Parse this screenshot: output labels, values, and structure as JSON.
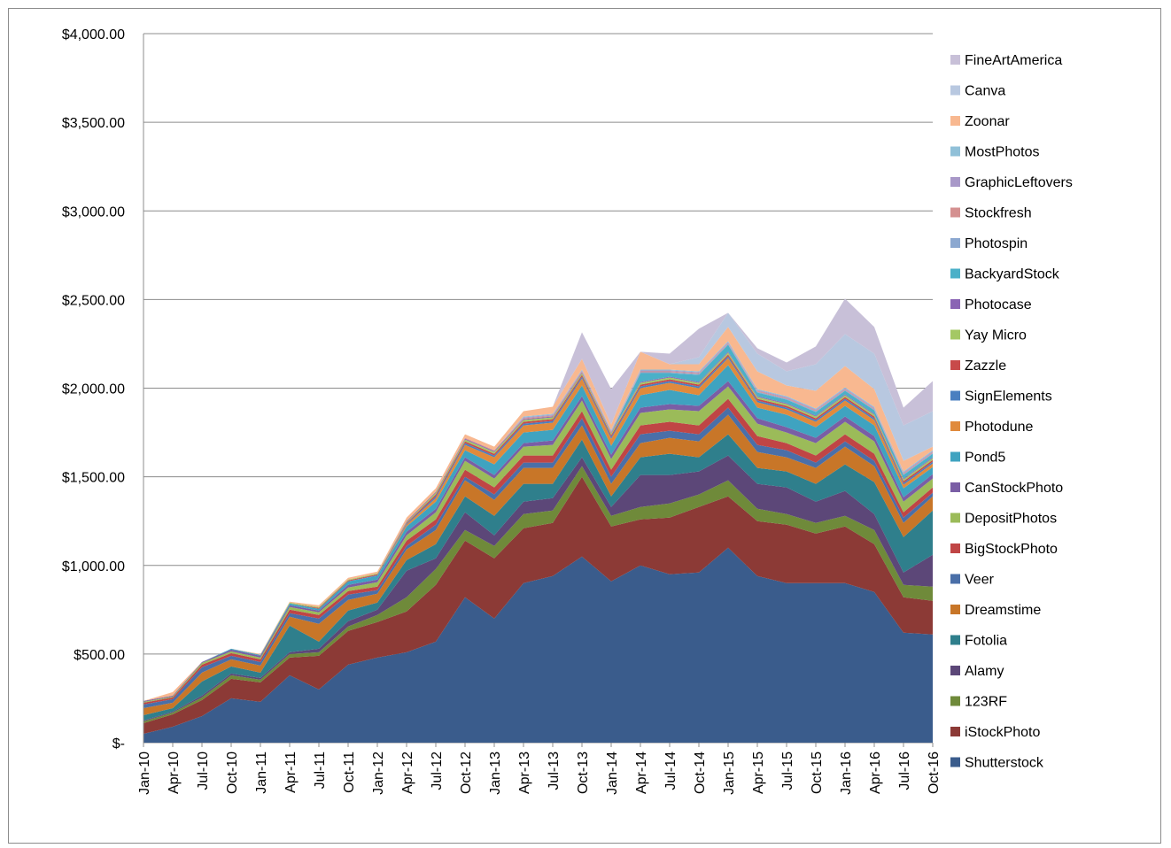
{
  "chart_data": {
    "type": "area",
    "stacked": true,
    "title": "",
    "xlabel": "",
    "ylabel": "",
    "ylim": [
      0,
      4000
    ],
    "y_ticks": [
      0,
      500,
      1000,
      1500,
      2000,
      2500,
      3000,
      3500,
      4000
    ],
    "y_tick_labels": [
      "$-",
      "$500.00",
      "$1,000.00",
      "$1,500.00",
      "$2,000.00",
      "$2,500.00",
      "$3,000.00",
      "$3,500.00",
      "$4,000.00"
    ],
    "x_tick_labels": [
      "Jan-10",
      "Apr-10",
      "Jul-10",
      "Oct-10",
      "Jan-11",
      "Apr-11",
      "Jul-11",
      "Oct-11",
      "Jan-12",
      "Apr-12",
      "Jul-12",
      "Oct-12",
      "Jan-13",
      "Apr-13",
      "Jul-13",
      "Oct-13",
      "Jan-14",
      "Apr-14",
      "Jul-14",
      "Oct-14",
      "Jan-15",
      "Apr-15",
      "Jul-15",
      "Oct-15",
      "Jan-16",
      "Apr-16",
      "Jul-16",
      "Oct-16"
    ],
    "grid": "horizontal",
    "legend_position": "right",
    "legend_order": [
      "FineArtAmerica",
      "Canva",
      "Zoonar",
      "MostPhotos",
      "GraphicLeftovers",
      "Stockfresh",
      "Photospin",
      "BackyardStock",
      "Photocase",
      "Yay Micro",
      "Zazzle",
      "SignElements",
      "Photodune",
      "Pond5",
      "CanStockPhoto",
      "DepositPhotos",
      "BigStockPhoto",
      "Veer",
      "Dreamstime",
      "Fotolia",
      "Alamy",
      "123RF",
      "iStockPhoto",
      "Shutterstock"
    ],
    "x": [
      "Jan-10",
      "Apr-10",
      "Jul-10",
      "Oct-10",
      "Jan-11",
      "Apr-11",
      "Jul-11",
      "Oct-11",
      "Jan-12",
      "Apr-12",
      "Jul-12",
      "Oct-12",
      "Jan-13",
      "Apr-13",
      "Jul-13",
      "Oct-13",
      "Jan-14",
      "Apr-14",
      "Jul-14",
      "Oct-14",
      "Jan-15",
      "Apr-15",
      "Jul-15",
      "Oct-15",
      "Jan-16",
      "Apr-16",
      "Jul-16",
      "Oct-16"
    ],
    "series": [
      {
        "name": "Shutterstock",
        "color": "#3a5c8c",
        "values": [
          50,
          90,
          150,
          250,
          230,
          380,
          300,
          440,
          480,
          510,
          570,
          820,
          700,
          900,
          940,
          1050,
          910,
          1000,
          950,
          960,
          1100,
          940,
          900,
          900,
          900,
          850,
          620,
          610
        ]
      },
      {
        "name": "iStockPhoto",
        "color": "#8c3a36",
        "values": [
          60,
          70,
          90,
          110,
          110,
          100,
          190,
          190,
          200,
          230,
          320,
          320,
          340,
          310,
          300,
          450,
          310,
          260,
          320,
          370,
          290,
          310,
          330,
          280,
          320,
          270,
          200,
          190
        ]
      },
      {
        "name": "123RF",
        "color": "#6f8a3a",
        "values": [
          10,
          10,
          15,
          20,
          15,
          20,
          20,
          25,
          40,
          80,
          90,
          60,
          70,
          80,
          70,
          60,
          60,
          70,
          80,
          70,
          90,
          70,
          60,
          60,
          60,
          80,
          70,
          80
        ]
      },
      {
        "name": "Alamy",
        "color": "#5c4778",
        "values": [
          5,
          5,
          10,
          10,
          10,
          10,
          20,
          30,
          30,
          150,
          60,
          100,
          60,
          70,
          70,
          50,
          50,
          180,
          160,
          130,
          140,
          140,
          150,
          120,
          140,
          90,
          70,
          180
        ]
      },
      {
        "name": "Fotolia",
        "color": "#2f7f8c",
        "values": [
          30,
          20,
          80,
          40,
          30,
          150,
          40,
          60,
          40,
          60,
          80,
          90,
          110,
          100,
          80,
          100,
          60,
          100,
          120,
          80,
          120,
          90,
          90,
          100,
          150,
          180,
          200,
          250
        ]
      },
      {
        "name": "Dreamstime",
        "color": "#c87628",
        "values": [
          40,
          30,
          50,
          40,
          40,
          50,
          100,
          60,
          50,
          60,
          80,
          90,
          90,
          90,
          90,
          80,
          70,
          80,
          90,
          90,
          110,
          90,
          80,
          90,
          100,
          90,
          80,
          80
        ]
      },
      {
        "name": "Veer",
        "color": "#4a6fa8",
        "values": [
          20,
          20,
          30,
          20,
          20,
          20,
          30,
          30,
          20,
          20,
          30,
          20,
          30,
          30,
          30,
          40,
          40,
          50,
          40,
          40,
          40,
          40,
          40,
          30,
          30,
          30,
          30,
          20
        ]
      },
      {
        "name": "BigStockPhoto",
        "color": "#c04545",
        "values": [
          10,
          10,
          15,
          15,
          15,
          20,
          20,
          20,
          20,
          30,
          30,
          40,
          40,
          40,
          40,
          40,
          40,
          50,
          50,
          50,
          50,
          50,
          40,
          40,
          40,
          40,
          30,
          30
        ]
      },
      {
        "name": "DepositPhotos",
        "color": "#9bbb59",
        "values": [
          5,
          5,
          10,
          10,
          10,
          15,
          15,
          20,
          25,
          30,
          40,
          50,
          50,
          50,
          60,
          60,
          60,
          70,
          70,
          80,
          70,
          70,
          60,
          70,
          70,
          70,
          60,
          50
        ]
      },
      {
        "name": "CanStockPhoto",
        "color": "#7a5ea5",
        "values": [
          5,
          5,
          5,
          10,
          10,
          10,
          10,
          15,
          15,
          20,
          20,
          20,
          20,
          20,
          25,
          25,
          25,
          30,
          30,
          30,
          30,
          30,
          30,
          30,
          30,
          30,
          25,
          25
        ]
      },
      {
        "name": "Pond5",
        "color": "#3fa3c0",
        "values": [
          0,
          0,
          0,
          5,
          5,
          10,
          10,
          20,
          20,
          30,
          40,
          40,
          60,
          60,
          60,
          60,
          50,
          70,
          80,
          60,
          90,
          60,
          70,
          60,
          60,
          60,
          50,
          40
        ]
      },
      {
        "name": "Photodune",
        "color": "#e08a3c",
        "values": [
          0,
          0,
          0,
          0,
          0,
          0,
          0,
          0,
          0,
          10,
          20,
          30,
          40,
          40,
          40,
          40,
          40,
          40,
          40,
          40,
          40,
          30,
          30,
          30,
          30,
          30,
          20,
          20
        ]
      },
      {
        "name": "SignElements",
        "color": "#4a7fc0",
        "values": [
          0,
          0,
          0,
          0,
          0,
          0,
          0,
          0,
          5,
          5,
          10,
          10,
          10,
          10,
          10,
          10,
          10,
          10,
          10,
          10,
          10,
          10,
          10,
          10,
          10,
          10,
          10,
          10
        ]
      },
      {
        "name": "Zazzle",
        "color": "#c84a4a",
        "values": [
          0,
          0,
          0,
          0,
          0,
          0,
          5,
          5,
          5,
          5,
          10,
          10,
          10,
          10,
          10,
          10,
          10,
          10,
          10,
          10,
          10,
          10,
          10,
          10,
          10,
          10,
          10,
          10
        ]
      },
      {
        "name": "Yay Micro",
        "color": "#a4c864",
        "values": [
          0,
          0,
          0,
          0,
          0,
          5,
          5,
          5,
          5,
          5,
          10,
          10,
          10,
          10,
          10,
          10,
          10,
          10,
          10,
          10,
          10,
          10,
          10,
          10,
          10,
          10,
          10,
          10
        ]
      },
      {
        "name": "Photocase",
        "color": "#8a64b4",
        "values": [
          0,
          0,
          0,
          0,
          0,
          0,
          0,
          0,
          0,
          5,
          5,
          5,
          5,
          5,
          5,
          5,
          5,
          5,
          5,
          5,
          5,
          5,
          5,
          5,
          5,
          5,
          5,
          5
        ]
      },
      {
        "name": "BackyardStock",
        "color": "#4bb0c8",
        "values": [
          0,
          0,
          0,
          0,
          0,
          0,
          0,
          0,
          0,
          0,
          0,
          0,
          0,
          0,
          0,
          0,
          0,
          50,
          20,
          40,
          40,
          20,
          20,
          20,
          20,
          20,
          20,
          20
        ]
      },
      {
        "name": "Photospin",
        "color": "#8ca8d0",
        "values": [
          0,
          0,
          0,
          0,
          0,
          0,
          0,
          0,
          0,
          0,
          0,
          0,
          0,
          0,
          0,
          0,
          0,
          5,
          5,
          5,
          5,
          5,
          5,
          5,
          5,
          5,
          5,
          5
        ]
      },
      {
        "name": "Stockfresh",
        "color": "#d49090",
        "values": [
          0,
          0,
          0,
          0,
          0,
          0,
          0,
          0,
          0,
          0,
          0,
          5,
          5,
          5,
          5,
          5,
          5,
          5,
          5,
          5,
          5,
          5,
          5,
          5,
          5,
          5,
          5,
          5
        ]
      },
      {
        "name": "GraphicLeftovers",
        "color": "#a898c8",
        "values": [
          0,
          0,
          0,
          0,
          0,
          0,
          0,
          0,
          0,
          0,
          0,
          0,
          0,
          5,
          5,
          5,
          5,
          5,
          5,
          5,
          5,
          5,
          5,
          5,
          5,
          5,
          5,
          5
        ]
      },
      {
        "name": "MostPhotos",
        "color": "#90c0d8",
        "values": [
          0,
          0,
          0,
          0,
          0,
          0,
          0,
          0,
          0,
          0,
          0,
          0,
          0,
          5,
          5,
          5,
          5,
          5,
          5,
          5,
          5,
          5,
          5,
          5,
          5,
          5,
          5,
          5
        ]
      },
      {
        "name": "Zoonar",
        "color": "#f8b890",
        "values": [
          0,
          20,
          0,
          0,
          5,
          5,
          10,
          10,
          10,
          20,
          20,
          20,
          20,
          30,
          40,
          60,
          30,
          100,
          30,
          40,
          80,
          100,
          60,
          100,
          120,
          100,
          60,
          20
        ]
      },
      {
        "name": "Canva",
        "color": "#b8c8e0",
        "values": [
          0,
          0,
          0,
          0,
          0,
          0,
          0,
          0,
          0,
          0,
          0,
          0,
          0,
          0,
          0,
          0,
          0,
          0,
          0,
          40,
          80,
          100,
          80,
          150,
          180,
          200,
          200,
          200
        ]
      },
      {
        "name": "FineArtAmerica",
        "color": "#c8c0d8",
        "values": [
          0,
          0,
          0,
          0,
          0,
          0,
          0,
          0,
          0,
          0,
          0,
          0,
          0,
          0,
          0,
          150,
          200,
          0,
          60,
          160,
          0,
          30,
          50,
          100,
          200,
          150,
          100,
          170
        ]
      }
    ]
  }
}
